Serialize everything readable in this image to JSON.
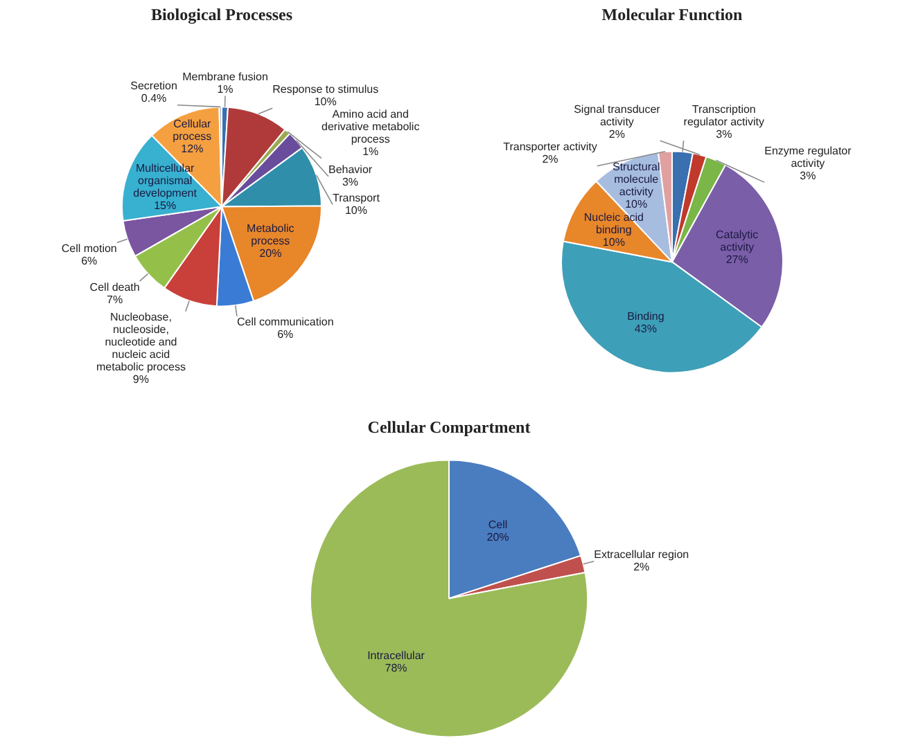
{
  "chart_data": [
    {
      "type": "pie",
      "title": "Biological Processes",
      "categories": [
        "Membrane fusion",
        "Response to stimulus",
        "Amino acid and derivative metabolic process",
        "Behavior",
        "Transport",
        "Metabolic process",
        "Cell communication",
        "Nucleobase, nucleoside, nucleotide and nucleic acid metabolic process",
        "Cell death",
        "Cell motion",
        "Multicellular organismal development",
        "Cellular process",
        "Secretion"
      ],
      "values": [
        1,
        10,
        1,
        3,
        10,
        20,
        6,
        9,
        7,
        6,
        15,
        12,
        0.4
      ],
      "value_labels": [
        "1%",
        "10%",
        "1%",
        "3%",
        "10%",
        "20%",
        "6%",
        "9%",
        "7%",
        "6%",
        "15%",
        "12%",
        "0.4%"
      ],
      "colors": [
        "#3a6fb0",
        "#b03a3a",
        "#9aaa50",
        "#6a4c9c",
        "#2f8eaa",
        "#e8862a",
        "#3a7bd5",
        "#c9403a",
        "#94c04a",
        "#7a55a0",
        "#38b0d0",
        "#f5a040",
        "#a7bde0"
      ]
    },
    {
      "type": "pie",
      "title": "Molecular Function",
      "categories": [
        "Transcription regulator activity",
        "Signal transducer activity",
        "Enzyme regulator activity",
        "Catalytic activity",
        "Binding",
        "Nucleic acid binding",
        "Structural molecule activity",
        "Transporter activity"
      ],
      "values": [
        3,
        2,
        3,
        27,
        43,
        10,
        10,
        2
      ],
      "value_labels": [
        "3%",
        "2%",
        "3%",
        "27%",
        "43%",
        "10%",
        "10%",
        "2%"
      ],
      "colors": [
        "#3a6fb0",
        "#c0392b",
        "#7ab648",
        "#7a5ea8",
        "#3e9fb8",
        "#e8862a",
        "#a7bde0",
        "#e0a0a0"
      ]
    },
    {
      "type": "pie",
      "title": "Cellular Compartment",
      "categories": [
        "Cell",
        "Extracellular region",
        "Intracellular"
      ],
      "values": [
        20,
        2,
        78
      ],
      "value_labels": [
        "20%",
        "2%",
        "78%"
      ],
      "colors": [
        "#4a7cc0",
        "#c0504d",
        "#9bbb59"
      ]
    }
  ]
}
